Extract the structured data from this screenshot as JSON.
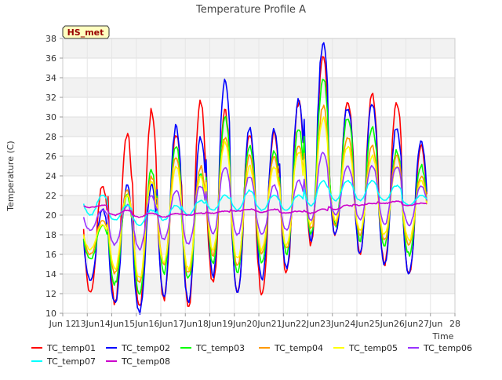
{
  "chart_data": {
    "type": "line",
    "title": "Temperature Profile A",
    "xlabel": "Time",
    "ylabel": "Temperature (C)",
    "site_label": "HS_met",
    "xlim": [
      12,
      28
    ],
    "ylim": [
      10,
      38
    ],
    "x_ticks": [
      12,
      13,
      14,
      15,
      16,
      17,
      18,
      19,
      20,
      21,
      22,
      23,
      24,
      25,
      26,
      27,
      28
    ],
    "x_tick_labels": [
      "Jun 12",
      "13Jun",
      "14Jun",
      "15Jun",
      "16Jun",
      "17Jun",
      "18Jun",
      "19Jun",
      "20Jun",
      "21Jun",
      "22Jun",
      "23Jun",
      "24Jun",
      "25Jun",
      "26Jun",
      "27Jun",
      "28"
    ],
    "y_ticks": [
      10,
      12,
      14,
      16,
      18,
      20,
      22,
      24,
      26,
      28,
      30,
      32,
      34,
      36,
      38
    ],
    "grid": true,
    "legend_position": "bottom",
    "series": [
      {
        "name": "TC_temp01",
        "color": "#ff0000",
        "daily_max": [
          23.0,
          28.3,
          30.6,
          28.3,
          31.5,
          30.5,
          28.5,
          28.5,
          31.5,
          36.0,
          31.5,
          32.3,
          31.6,
          27.1
        ],
        "daily_min": [
          12.0,
          11.0,
          10.5,
          11.5,
          10.5,
          13.0,
          12.0,
          12.0,
          14.0,
          17.0,
          18.0,
          16.0,
          15.0,
          14.0
        ]
      },
      {
        "name": "TC_temp02",
        "color": "#0000ff",
        "daily_max": [
          20.5,
          23.0,
          23.0,
          29.0,
          28.0,
          34.0,
          29.0,
          28.6,
          31.7,
          37.7,
          31.0,
          31.5,
          29.0,
          27.5
        ],
        "daily_min": [
          13.3,
          11.0,
          10.0,
          11.6,
          11.0,
          13.5,
          12.0,
          13.5,
          14.5,
          17.5,
          18.0,
          16.0,
          15.0,
          14.0
        ]
      },
      {
        "name": "TC_temp03",
        "color": "#00ff00",
        "daily_max": [
          19.0,
          22.0,
          24.6,
          27.0,
          24.0,
          30.0,
          27.0,
          26.5,
          28.8,
          34.0,
          30.0,
          29.0,
          26.5,
          25.0
        ],
        "daily_min": [
          15.5,
          13.0,
          12.0,
          14.0,
          13.5,
          15.0,
          14.0,
          15.0,
          16.0,
          18.0,
          19.0,
          17.5,
          17.0,
          16.0
        ]
      },
      {
        "name": "TC_temp04",
        "color": "#ff9900",
        "daily_max": [
          19.5,
          22.5,
          24.0,
          26.0,
          25.0,
          28.0,
          26.0,
          26.0,
          27.0,
          31.0,
          28.0,
          27.0,
          26.0,
          24.0
        ],
        "daily_min": [
          16.0,
          14.0,
          13.0,
          15.0,
          14.0,
          16.0,
          15.0,
          16.0,
          16.5,
          18.5,
          19.0,
          18.0,
          17.5,
          17.0
        ]
      },
      {
        "name": "TC_temp05",
        "color": "#ffff00",
        "daily_max": [
          19.0,
          22.0,
          23.5,
          25.0,
          24.0,
          27.5,
          25.0,
          25.0,
          26.5,
          30.0,
          27.0,
          26.0,
          25.0,
          23.5
        ],
        "daily_min": [
          16.5,
          14.5,
          13.5,
          15.0,
          14.5,
          16.5,
          15.5,
          16.5,
          17.0,
          19.0,
          19.5,
          18.5,
          18.0,
          17.5
        ]
      },
      {
        "name": "TC_temp06",
        "color": "#9933ff",
        "daily_max": [
          20.5,
          21.0,
          22.0,
          22.5,
          23.0,
          25.0,
          24.0,
          23.0,
          23.5,
          26.5,
          25.0,
          25.0,
          25.0,
          23.0
        ],
        "daily_min": [
          18.5,
          17.0,
          16.5,
          17.5,
          17.0,
          18.0,
          18.0,
          18.0,
          18.5,
          19.5,
          20.0,
          19.5,
          19.0,
          19.0
        ]
      },
      {
        "name": "TC_temp07",
        "color": "#00ffff",
        "daily_max": [
          22.0,
          21.0,
          20.5,
          21.0,
          21.5,
          22.0,
          22.5,
          22.0,
          22.0,
          23.5,
          23.5,
          23.5,
          23.0,
          22.0
        ],
        "daily_min": [
          20.0,
          19.5,
          19.0,
          19.5,
          20.0,
          20.5,
          20.5,
          20.5,
          20.5,
          21.0,
          21.5,
          21.5,
          21.5,
          21.0
        ]
      },
      {
        "name": "TC_temp08",
        "color": "#cc00cc",
        "daily_max": [
          21.0,
          20.5,
          20.2,
          20.2,
          20.2,
          20.4,
          20.6,
          20.6,
          20.4,
          20.6,
          21.0,
          21.2,
          21.4,
          21.2
        ],
        "daily_min": [
          20.8,
          20.0,
          19.8,
          19.8,
          20.0,
          20.2,
          20.4,
          20.3,
          20.2,
          20.2,
          20.6,
          21.0,
          21.2,
          21.0
        ]
      }
    ]
  }
}
